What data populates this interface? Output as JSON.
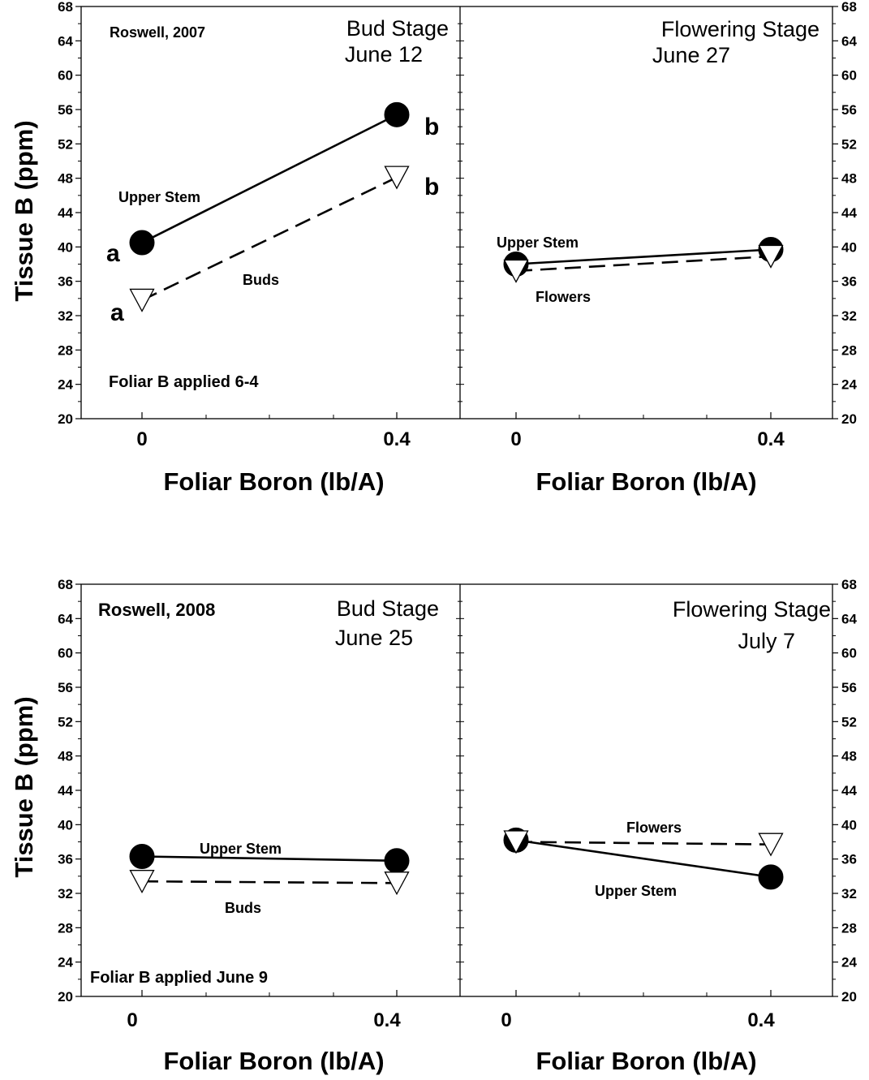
{
  "chart_data": [
    {
      "type": "line",
      "title": "Roswell, 2007",
      "ylabel": "Tissue B (ppm)",
      "xlabel": "Foliar Boron (lb/A)",
      "ylim": [
        20,
        68
      ],
      "yticks": [
        "20",
        "24",
        "28",
        "32",
        "36",
        "40",
        "44",
        "48",
        "52",
        "56",
        "60",
        "64",
        "68"
      ],
      "xticks": [
        "0",
        "0.4"
      ],
      "note": "Foliar B applied 6-4",
      "panels": [
        {
          "stage_line1": "Bud Stage",
          "stage_line2": "June 12",
          "series": [
            {
              "name": "Upper Stem",
              "marker": "circle",
              "line": "solid",
              "x": [
                0,
                0.4
              ],
              "y": [
                40.5,
                55.4
              ],
              "sig": [
                "a",
                "b"
              ]
            },
            {
              "name": "Buds",
              "marker": "triangle-down",
              "line": "dashed",
              "x": [
                0,
                0.4
              ],
              "y": [
                33.8,
                48.1
              ],
              "sig": [
                "a",
                "b"
              ]
            }
          ]
        },
        {
          "stage_line1": "Flowering Stage",
          "stage_line2": "June 27",
          "series": [
            {
              "name": "Upper Stem",
              "marker": "circle",
              "line": "solid",
              "x": [
                0,
                0.4
              ],
              "y": [
                38.0,
                39.7
              ]
            },
            {
              "name": "Flowers",
              "marker": "triangle-down",
              "line": "dashed",
              "x": [
                0,
                0.4
              ],
              "y": [
                37.2,
                38.9
              ]
            }
          ]
        }
      ]
    },
    {
      "type": "line",
      "title": "Roswell, 2008",
      "ylabel": "Tissue B (ppm)",
      "xlabel": "Foliar Boron (lb/A)",
      "ylim": [
        20,
        68
      ],
      "yticks": [
        "20",
        "24",
        "28",
        "32",
        "36",
        "40",
        "44",
        "48",
        "52",
        "56",
        "60",
        "64",
        "68"
      ],
      "xticks": [
        "0",
        "0.4"
      ],
      "note": "Foliar B applied June 9",
      "panels": [
        {
          "stage_line1": "Bud Stage",
          "stage_line2": "June 25",
          "series": [
            {
              "name": "Upper Stem",
              "marker": "circle",
              "line": "solid",
              "x": [
                0,
                0.4
              ],
              "y": [
                36.3,
                35.8
              ]
            },
            {
              "name": "Buds",
              "marker": "triangle-down",
              "line": "dashed",
              "x": [
                0,
                0.4
              ],
              "y": [
                33.4,
                33.2
              ]
            }
          ]
        },
        {
          "stage_line1": "Flowering Stage",
          "stage_line2": "July 7",
          "series": [
            {
              "name": "Upper Stem",
              "marker": "circle",
              "line": "solid",
              "x": [
                0,
                0.4
              ],
              "y": [
                38.2,
                33.9
              ]
            },
            {
              "name": "Flowers",
              "marker": "triangle-down",
              "line": "dashed",
              "x": [
                0,
                0.4
              ],
              "y": [
                38.0,
                37.7
              ]
            }
          ]
        }
      ]
    }
  ]
}
